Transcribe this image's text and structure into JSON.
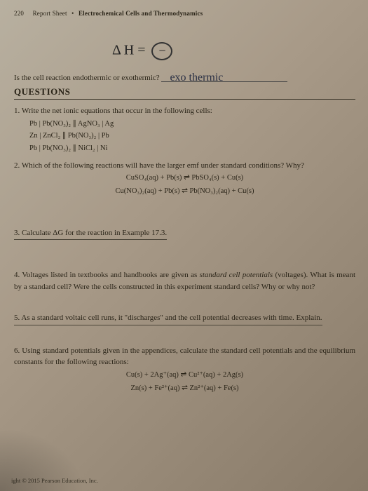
{
  "header": {
    "page_number": "220",
    "title_left": "Report Sheet",
    "title_right": "Electrochemical Cells and Thermodynamics"
  },
  "delta_h": {
    "symbol": "Δ H =",
    "circled": "−"
  },
  "endo_question": {
    "text": "Is the cell reaction endothermic or exothermic?",
    "answer": "exo thermic"
  },
  "questions_heading": "QUESTIONS",
  "q1": {
    "num": "1.",
    "text": "Write the net ionic equations that occur in the following cells:",
    "cells": [
      "Pb | Pb(NO₃)₂ ∥ AgNO₃ | Ag",
      "Zn | ZnCl₂ ∥ Pb(NO₃)₂ | Pb",
      "Pb | Pb(NO₃)₂ ∥ NiCl₂ | Ni"
    ]
  },
  "q2": {
    "num": "2.",
    "text": "Which of the following reactions will have the larger emf under standard conditions? Why?",
    "eqs": [
      "CuSO₄(aq) + Pb(s) ⇌ PbSO₄(s) + Cu(s)",
      "Cu(NO₃)₂(aq) + Pb(s) ⇌ Pb(NO₃)₂(aq) + Cu(s)"
    ]
  },
  "q3": {
    "num": "3.",
    "text": "Calculate ΔG for the reaction in Example 17.3."
  },
  "q4": {
    "num": "4.",
    "text": "Voltages listed in textbooks and handbooks are given as standard cell potentials (voltages). What is meant by a standard cell? Were the cells constructed in this experiment standard cells? Why or why not?"
  },
  "q5": {
    "num": "5.",
    "text": "As a standard voltaic cell runs, it \"discharges\" and the cell potential decreases with time. Explain."
  },
  "q6": {
    "num": "6.",
    "text": "Using standard potentials given in the appendices, calculate the standard cell potentials and the equilibrium constants for the following reactions:",
    "eqs": [
      "Cu(s) + 2Ag⁺(aq) ⇌ Cu²⁺(aq) + 2Ag(s)",
      "Zn(s) + Fe²⁺(aq) ⇌ Zn²⁺(aq) + Fe(s)"
    ]
  },
  "footer": "ight © 2015 Pearson Education, Inc.",
  "italic_phrase": "standard cell potentials"
}
